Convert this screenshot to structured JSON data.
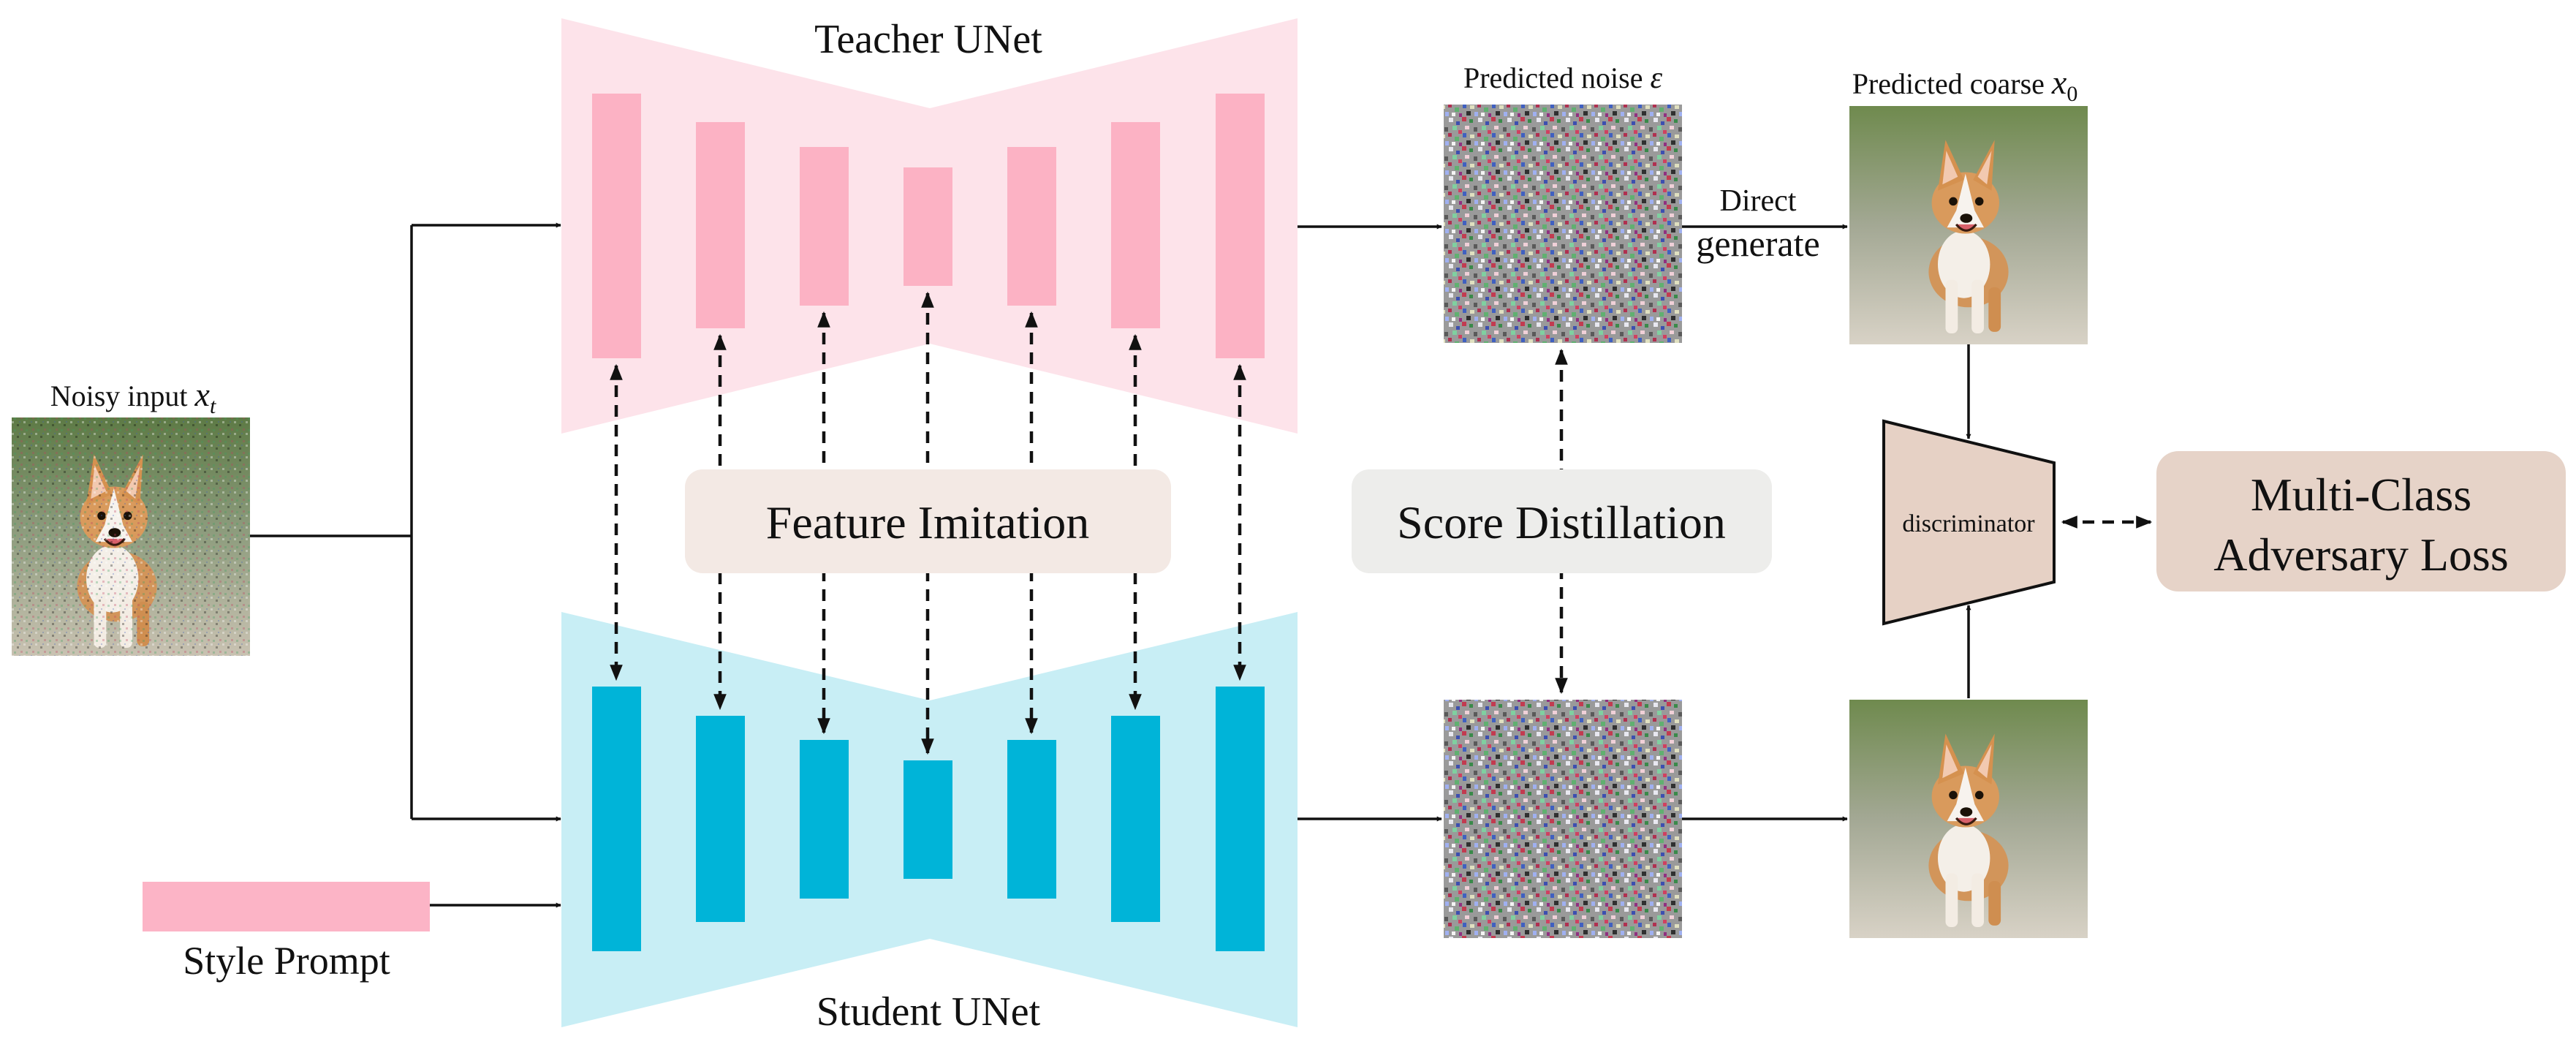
{
  "labels": {
    "teacher": "Teacher UNet",
    "student": "Student UNet",
    "noisy_input_text": "Noisy input ",
    "noisy_input_var": "x",
    "noisy_input_sub": "t",
    "style_prompt": "Style Prompt",
    "predicted_noise_text": "Predicted noise ",
    "predicted_noise_var": "ε",
    "predicted_coarse_text": "Predicted coarse ",
    "predicted_coarse_var": "x",
    "predicted_coarse_sub": "0",
    "direct_line1": "Direct",
    "direct_line2": "generate",
    "feature_imitation": "Feature Imitation",
    "score_distillation": "Score Distillation",
    "discriminator": "discriminator",
    "loss_line1": "Multi-Class",
    "loss_line2": "Adversary Loss"
  },
  "colors": {
    "teacher_bg": "#fde3ea",
    "teacher_block": "#fcb2c4",
    "student_bg": "#c8eef5",
    "student_block": "#00b4d8",
    "style_prompt": "#fcb4c6",
    "label_box_feature": "#f3e9e4",
    "label_box_score": "#ededeb",
    "discriminator": "#e6d1c5",
    "loss_box": "#e6d3c8",
    "line": "#111111"
  },
  "icons": {
    "noisy_input_image": "noisy-corgi-image",
    "predicted_noise": "noise-texture-image",
    "predicted_coarse": "corgi-image",
    "student_output": "corgi-image"
  }
}
